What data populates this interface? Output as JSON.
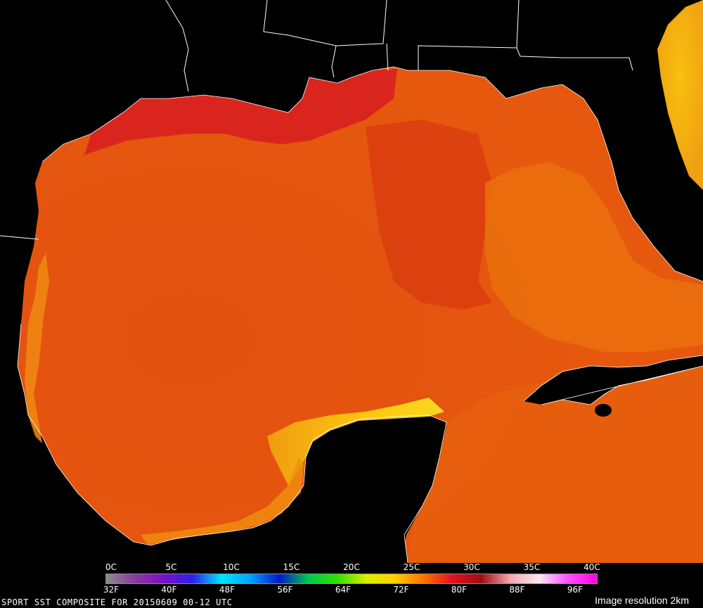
{
  "map": {
    "title": "",
    "regions": [
      "Gulf of Mexico",
      "Texas coast",
      "Louisiana coast",
      "Florida peninsula",
      "Yucatan peninsula",
      "Cuba"
    ]
  },
  "legend": {
    "celsius_labels": [
      "0C",
      "5C",
      "10C",
      "15C",
      "20C",
      "25C",
      "30C",
      "35C",
      "40C"
    ],
    "fahrenheit_labels": [
      "32F",
      "40F",
      "48F",
      "56F",
      "64F",
      "72F",
      "80F",
      "88F",
      "96F"
    ],
    "gradient_colors": [
      "#8c8c8c",
      "#8a3a9e",
      "#7a0fc8",
      "#2f20e8",
      "#00e8ff",
      "#00a0ff",
      "#0018c8",
      "#00c850",
      "#30e000",
      "#d8f000",
      "#ffd000",
      "#ff7000",
      "#e01020",
      "#a01010",
      "#f4a8b0",
      "#f8e8f0",
      "#ff50ff",
      "#ff00e0"
    ]
  },
  "colors": {
    "land": "#000000",
    "border": "#ffffff",
    "sea_dominant": "#e8500a",
    "sea_warm_shelf": "#d8201a",
    "sea_cool_upwelling": "#f0a010",
    "sea_loop_current": "#e86a0c"
  },
  "caption": "SPORT SST COMPOSITE FOR 20150609 00-12 UTC",
  "resolution": "Image resolution 2km"
}
